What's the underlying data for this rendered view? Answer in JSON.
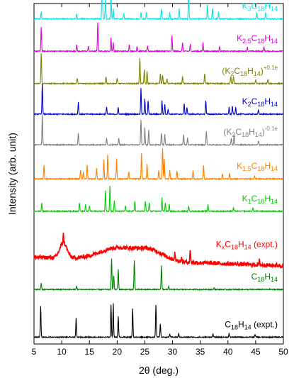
{
  "chart_data": {
    "type": "line",
    "title": "",
    "xlabel": "2θ (deg.)",
    "ylabel": "Intensity (arb. unit)",
    "xlim": [
      5,
      50
    ],
    "xticks": [
      5,
      10,
      15,
      20,
      25,
      30,
      35,
      40,
      45,
      50
    ],
    "xtick_labels": [
      "5",
      "10",
      "15",
      "20",
      "25",
      "30",
      "35",
      "40",
      "45",
      "50"
    ],
    "ylim": [
      0,
      10
    ],
    "grid": false,
    "legend": "inline labels at right of each trace",
    "series": [
      {
        "formula": [
          {
            "t": "K"
          },
          {
            "t": "3",
            "sub": true
          },
          {
            "t": "C"
          },
          {
            "t": "18",
            "sub": true
          },
          {
            "t": "H"
          },
          {
            "t": "14",
            "sub": true
          }
        ],
        "color": "#00e5e5",
        "baseline": 9.55,
        "peaks": [
          [
            6.3,
            0.2
          ],
          [
            12.7,
            0.15
          ],
          [
            17.3,
            1.4
          ],
          [
            17.9,
            0.6
          ],
          [
            18.9,
            0.8
          ],
          [
            19.3,
            0.3
          ],
          [
            21.2,
            0.15
          ],
          [
            24.3,
            0.2
          ],
          [
            25.3,
            0.2
          ],
          [
            28.0,
            0.3
          ],
          [
            29.5,
            0.2
          ],
          [
            31.2,
            0.3
          ],
          [
            32.9,
            0.8
          ],
          [
            36.3,
            0.4
          ],
          [
            37.2,
            0.3
          ],
          [
            38.3,
            0.2
          ],
          [
            45.2,
            0.2
          ],
          [
            46.8,
            0.2
          ]
        ]
      },
      {
        "formula": [
          {
            "t": "K"
          },
          {
            "t": "2.5",
            "sub": true
          },
          {
            "t": "C"
          },
          {
            "t": "18",
            "sub": true
          },
          {
            "t": "H"
          },
          {
            "t": "14",
            "sub": true
          }
        ],
        "color": "#e000e0",
        "baseline": 8.6,
        "peaks": [
          [
            6.3,
            0.7
          ],
          [
            12.7,
            0.2
          ],
          [
            14.8,
            0.15
          ],
          [
            16.5,
            0.85
          ],
          [
            18.9,
            0.4
          ],
          [
            19.3,
            0.25
          ],
          [
            22.2,
            0.2
          ],
          [
            23.6,
            0.15
          ],
          [
            25.5,
            0.15
          ],
          [
            29.9,
            0.45
          ],
          [
            31.8,
            0.25
          ],
          [
            33.2,
            0.2
          ],
          [
            35.5,
            0.25
          ],
          [
            38.5,
            0.15
          ],
          [
            43.5,
            0.12
          ],
          [
            46.5,
            0.12
          ]
        ]
      },
      {
        "formula": [
          {
            "t": "(K"
          },
          {
            "t": "2",
            "sub": true
          },
          {
            "t": "C"
          },
          {
            "t": "18",
            "sub": true
          },
          {
            "t": "H"
          },
          {
            "t": "14",
            "sub": true
          },
          {
            "t": ")"
          },
          {
            "t": "+0.1e",
            "sup": true
          }
        ],
        "color": "#808000",
        "baseline": 7.65,
        "peaks": [
          [
            6.3,
            0.9
          ],
          [
            12.8,
            0.15
          ],
          [
            18.0,
            0.2
          ],
          [
            20.0,
            0.15
          ],
          [
            24.1,
            0.75
          ],
          [
            24.9,
            0.4
          ],
          [
            25.4,
            0.35
          ],
          [
            27.8,
            0.3
          ],
          [
            28.2,
            0.25
          ],
          [
            29.0,
            0.15
          ],
          [
            31.8,
            0.2
          ],
          [
            35.8,
            0.3
          ],
          [
            40.5,
            0.2
          ],
          [
            41.0,
            0.2
          ],
          [
            45.0,
            0.12
          ],
          [
            47.2,
            0.12
          ]
        ]
      },
      {
        "formula": [
          {
            "t": "K"
          },
          {
            "t": "2",
            "sub": true
          },
          {
            "t": "C"
          },
          {
            "t": "18",
            "sub": true
          },
          {
            "t": "H"
          },
          {
            "t": "14",
            "sub": true
          }
        ],
        "color": "#0000cc",
        "baseline": 6.75,
        "peaks": [
          [
            6.5,
            0.9
          ],
          [
            13.0,
            0.35
          ],
          [
            18.1,
            0.2
          ],
          [
            20.2,
            0.2
          ],
          [
            24.3,
            0.75
          ],
          [
            25.0,
            0.45
          ],
          [
            25.6,
            0.4
          ],
          [
            28.1,
            0.4
          ],
          [
            28.6,
            0.3
          ],
          [
            29.2,
            0.15
          ],
          [
            32.1,
            0.3
          ],
          [
            32.6,
            0.2
          ],
          [
            36.0,
            0.4
          ],
          [
            40.2,
            0.2
          ],
          [
            40.8,
            0.25
          ],
          [
            41.4,
            0.2
          ],
          [
            45.5,
            0.12
          ]
        ]
      },
      {
        "formula": [
          {
            "t": "(K"
          },
          {
            "t": "2",
            "sub": true
          },
          {
            "t": "C"
          },
          {
            "t": "18",
            "sub": true
          },
          {
            "t": "H"
          },
          {
            "t": "14",
            "sub": true
          },
          {
            "t": ")"
          },
          {
            "t": "-0.1e",
            "sup": true
          }
        ],
        "color": "#808080",
        "baseline": 5.85,
        "peaks": [
          [
            6.5,
            0.9
          ],
          [
            13.0,
            0.35
          ],
          [
            18.1,
            0.2
          ],
          [
            20.3,
            0.2
          ],
          [
            24.3,
            0.75
          ],
          [
            25.0,
            0.5
          ],
          [
            25.7,
            0.45
          ],
          [
            28.0,
            0.35
          ],
          [
            28.6,
            0.3
          ],
          [
            32.0,
            0.3
          ],
          [
            32.7,
            0.2
          ],
          [
            36.1,
            0.4
          ],
          [
            40.6,
            0.2
          ],
          [
            41.1,
            0.3
          ],
          [
            45.5,
            0.12
          ]
        ]
      },
      {
        "formula": [
          {
            "t": "K"
          },
          {
            "t": "1.5",
            "sub": true
          },
          {
            "t": "C"
          },
          {
            "t": "18",
            "sub": true
          },
          {
            "t": "H"
          },
          {
            "t": "14",
            "sub": true
          }
        ],
        "color": "#ff8000",
        "baseline": 4.85,
        "peaks": [
          [
            6.8,
            0.4
          ],
          [
            13.4,
            0.25
          ],
          [
            13.9,
            0.2
          ],
          [
            14.6,
            0.4
          ],
          [
            16.3,
            0.3
          ],
          [
            17.6,
            0.55
          ],
          [
            18.3,
            0.7
          ],
          [
            19.9,
            0.6
          ],
          [
            22.1,
            0.2
          ],
          [
            24.4,
            0.75
          ],
          [
            25.4,
            0.45
          ],
          [
            27.5,
            0.25
          ],
          [
            28.2,
            0.9
          ],
          [
            28.5,
            0.6
          ],
          [
            29.5,
            0.25
          ],
          [
            30.8,
            0.25
          ],
          [
            33.7,
            0.25
          ],
          [
            35.6,
            0.4
          ],
          [
            39.0,
            0.15
          ],
          [
            40.3,
            0.15
          ],
          [
            44.8,
            0.1
          ]
        ]
      },
      {
        "formula": [
          {
            "t": "K"
          },
          {
            "t": "1",
            "sub": true
          },
          {
            "t": "C"
          },
          {
            "t": "18",
            "sub": true
          },
          {
            "t": "H"
          },
          {
            "t": "14",
            "sub": true
          }
        ],
        "color": "#00cc00",
        "baseline": 3.9,
        "peaks": [
          [
            6.4,
            0.25
          ],
          [
            13.2,
            0.25
          ],
          [
            14.3,
            0.2
          ],
          [
            15.0,
            0.15
          ],
          [
            17.9,
            0.6
          ],
          [
            18.7,
            0.75
          ],
          [
            19.5,
            0.3
          ],
          [
            21.5,
            0.15
          ],
          [
            23.2,
            0.3
          ],
          [
            25.1,
            0.3
          ],
          [
            25.8,
            0.25
          ],
          [
            28.1,
            0.4
          ],
          [
            28.7,
            0.25
          ],
          [
            29.4,
            0.2
          ],
          [
            32.9,
            0.15
          ],
          [
            36.4,
            0.2
          ],
          [
            41.0,
            0.1
          ],
          [
            44.5,
            0.1
          ]
        ]
      },
      {
        "formula": [
          {
            "t": "K"
          },
          {
            "t": "x",
            "sub": true
          },
          {
            "t": "C"
          },
          {
            "t": "18",
            "sub": true
          },
          {
            "t": "H"
          },
          {
            "t": "14",
            "sub": true
          },
          {
            "t": " (expt.)"
          }
        ],
        "color": "#ff0000",
        "baseline": 2.55,
        "broad": true,
        "peaks": [
          [
            10.3,
            0.25
          ],
          [
            30.4,
            0.2
          ],
          [
            31.6,
            0.1
          ],
          [
            33.2,
            0.4
          ],
          [
            45.7,
            0.15
          ]
        ]
      },
      {
        "formula": [
          {
            "t": "C"
          },
          {
            "t": "18",
            "sub": true
          },
          {
            "t": "H"
          },
          {
            "t": "14",
            "sub": true
          }
        ],
        "color": "#008000",
        "baseline": 1.6,
        "peaks": [
          [
            6.3,
            0.2
          ],
          [
            12.7,
            0.1
          ],
          [
            19.0,
            0.9
          ],
          [
            19.4,
            0.4
          ],
          [
            20.2,
            0.6
          ],
          [
            23.1,
            0.85
          ],
          [
            28.0,
            0.7
          ],
          [
            29.3,
            0.1
          ],
          [
            37.5,
            0.05
          ]
        ]
      },
      {
        "formula": [
          {
            "t": "C"
          },
          {
            "t": "18",
            "sub": true
          },
          {
            "t": "H"
          },
          {
            "t": "14",
            "sub": true
          },
          {
            "t": " (expt.)"
          }
        ],
        "color": "#000000",
        "baseline": 0.2,
        "peaks": [
          [
            6.2,
            0.9
          ],
          [
            12.6,
            0.55
          ],
          [
            18.9,
            0.95
          ],
          [
            19.3,
            1.0
          ],
          [
            20.2,
            0.6
          ],
          [
            22.8,
            0.85
          ],
          [
            27.0,
            0.95
          ],
          [
            27.8,
            0.4
          ],
          [
            29.5,
            0.1
          ],
          [
            31.1,
            0.1
          ],
          [
            37.3,
            0.1
          ],
          [
            40.2,
            0.1
          ],
          [
            44.9,
            0.08
          ]
        ]
      }
    ]
  }
}
